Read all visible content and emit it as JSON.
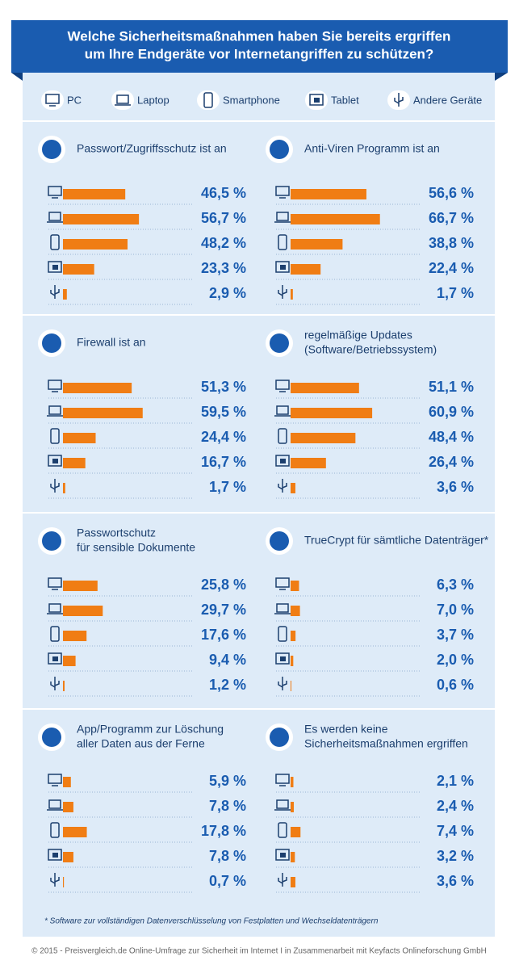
{
  "header": {
    "title": [
      "Welche Sicherheitsmaßnahmen haben Sie bereits ergriffen",
      "um Ihre Endgeräte vor Internetangriffen zu schützen?"
    ]
  },
  "legend": [
    "PC",
    "Laptop",
    "Smartphone",
    "Tablet",
    "Andere Geräte"
  ],
  "chart_data": [
    {
      "type": "bar",
      "title": [
        "Passwort/Zugriffsschutz ist an"
      ],
      "values": [
        46.5,
        56.7,
        48.2,
        23.3,
        2.9
      ],
      "value_labels": [
        "46,5 %",
        "56,7 %",
        "48,2 %",
        "23,3 %",
        "2,9 %"
      ],
      "xlim": [
        0,
        100
      ],
      "color": "#f07d14"
    },
    {
      "type": "bar",
      "title": [
        "Anti-Viren Programm ist an"
      ],
      "values": [
        56.6,
        66.7,
        38.8,
        22.4,
        1.7
      ],
      "value_labels": [
        "56,6 %",
        "66,7 %",
        "38,8 %",
        "22,4 %",
        "1,7 %"
      ],
      "xlim": [
        0,
        100
      ],
      "color": "#f07d14"
    },
    {
      "type": "bar",
      "title": [
        "Firewall ist an"
      ],
      "values": [
        51.3,
        59.5,
        24.4,
        16.7,
        1.7
      ],
      "value_labels": [
        "51,3 %",
        "59,5 %",
        "24,4 %",
        "16,7 %",
        "1,7 %"
      ],
      "xlim": [
        0,
        100
      ],
      "color": "#f07d14"
    },
    {
      "type": "bar",
      "title": [
        "regelmäßige Updates",
        "(Software/Betriebssystem)"
      ],
      "values": [
        51.1,
        60.9,
        48.4,
        26.4,
        3.6
      ],
      "value_labels": [
        "51,1 %",
        "60,9 %",
        "48,4 %",
        "26,4 %",
        "3,6 %"
      ],
      "xlim": [
        0,
        100
      ],
      "color": "#f07d14"
    },
    {
      "type": "bar",
      "title": [
        "Passwortschutz",
        "für sensible Dokumente"
      ],
      "values": [
        25.8,
        29.7,
        17.6,
        9.4,
        1.2
      ],
      "value_labels": [
        "25,8 %",
        "29,7 %",
        "17,6 %",
        "9,4 %",
        "1,2 %"
      ],
      "xlim": [
        0,
        100
      ],
      "color": "#f07d14"
    },
    {
      "type": "bar",
      "title": [
        "TrueCrypt für sämtliche Datenträger*"
      ],
      "values": [
        6.3,
        7.0,
        3.7,
        2.0,
        0.6
      ],
      "value_labels": [
        "6,3 %",
        "7,0 %",
        "3,7 %",
        "2,0 %",
        "0,6 %"
      ],
      "xlim": [
        0,
        100
      ],
      "color": "#f07d14"
    },
    {
      "type": "bar",
      "title": [
        "App/Programm zur Löschung",
        "aller Daten aus der Ferne"
      ],
      "values": [
        5.9,
        7.8,
        17.8,
        7.8,
        0.7
      ],
      "value_labels": [
        "5,9 %",
        "7,8 %",
        "17,8 %",
        "7,8 %",
        "0,7 %"
      ],
      "xlim": [
        0,
        100
      ],
      "color": "#f07d14"
    },
    {
      "type": "bar",
      "title": [
        "Es werden keine",
        "Sicherheitsmaßnahmen ergriffen"
      ],
      "values": [
        2.1,
        2.4,
        7.4,
        3.2,
        3.6
      ],
      "value_labels": [
        "2,1 %",
        "2,4 %",
        "7,4 %",
        "3,2 %",
        "3,6 %"
      ],
      "xlim": [
        0,
        100
      ],
      "color": "#f07d14"
    }
  ],
  "footnote": "* Software zur vollständigen Datenverschlüsselung von Festplatten und Wechseldatenträgern",
  "source": "© 2015 - Preisvergleich.de Online-Umfrage zur Sicherheit im Internet I in Zusammenarbeit mit Keyfacts Onlineforschung GmbH"
}
